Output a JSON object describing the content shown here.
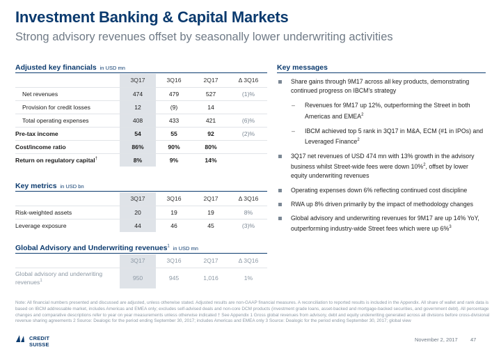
{
  "header": {
    "title": "Investment Banking & Capital Markets",
    "subtitle": "Strong advisory revenues offset by seasonally lower underwriting activities"
  },
  "financials": {
    "title": "Adjusted key financials",
    "unit": "in USD mn",
    "columns": [
      "3Q17",
      "3Q16",
      "2Q17",
      "Δ 3Q16"
    ],
    "rows": [
      {
        "label": "Net revenues",
        "values": [
          "474",
          "479",
          "527",
          "(1)%"
        ]
      },
      {
        "label": "Provision for credit losses",
        "values": [
          "12",
          "(9)",
          "14",
          ""
        ]
      },
      {
        "label": "Total operating expenses",
        "values": [
          "408",
          "433",
          "421",
          "(6)%"
        ]
      },
      {
        "label": "Pre-tax income",
        "values": [
          "54",
          "55",
          "92",
          "(2)%"
        ]
      },
      {
        "label": "Cost/income ratio",
        "values": [
          "86%",
          "90%",
          "80%",
          ""
        ]
      },
      {
        "label": "Return on regulatory capital",
        "footnote": "†",
        "values": [
          "8%",
          "9%",
          "14%",
          ""
        ]
      }
    ]
  },
  "metrics": {
    "title": "Key metrics",
    "unit": "in USD bn",
    "columns": [
      "3Q17",
      "3Q16",
      "2Q17",
      "Δ 3Q16"
    ],
    "rows": [
      {
        "label": "Risk-weighted assets",
        "values": [
          "20",
          "19",
          "19",
          "8%"
        ]
      },
      {
        "label": "Leverage exposure",
        "values": [
          "44",
          "46",
          "45",
          "(3)%"
        ]
      }
    ]
  },
  "advisory": {
    "title": "Global Advisory and Underwriting revenues",
    "footnote": "1",
    "unit": "in USD mn",
    "columns": [
      "3Q17",
      "3Q16",
      "2Q17",
      "Δ 3Q16"
    ],
    "row": {
      "label_line1": "Global advisory and underwriting",
      "label_line2": "revenues",
      "footnote": "1",
      "values": [
        "950",
        "945",
        "1,016",
        "1%"
      ]
    }
  },
  "key_messages": {
    "title": "Key messages",
    "items": [
      {
        "kind": "bullet",
        "text": "Share gains through 9M17 across all key products, demonstrating continued progress on IBCM's strategy"
      },
      {
        "kind": "sub",
        "text": "Revenues for 9M17 up 12%, outperforming the Street in both Americas and EMEA",
        "sup": "2"
      },
      {
        "kind": "sub",
        "text": "IBCM achieved top 5 rank in 3Q17 in M&A, ECM (#1 in IPOs) and Leveraged Finance",
        "sup": "2"
      },
      {
        "kind": "bullet",
        "text_a": "3Q17 net revenues of USD 474 mn with 13% growth in the advisory business whilst Street-wide fees were down 10%",
        "sup": "2",
        "text_b": ", offset by lower equity underwriting revenues"
      },
      {
        "kind": "bullet",
        "text": "Operating expenses down 6% reflecting continued cost discipline"
      },
      {
        "kind": "bullet",
        "text": "RWA up 8% driven primarily by the impact of methodology changes"
      },
      {
        "kind": "bullet",
        "text": "Global advisory and underwriting revenues for 9M17 are up 14% YoY, outperforming industry-wide Street fees which were up 6%",
        "sup": "3"
      }
    ]
  },
  "footnote": "Note: All financial numbers presented and discussed are adjusted, unless otherwise stated. Adjusted results are non-GAAP financial measures. A reconciliation to reported results is included in the Appendix. All share of wallet and rank data is based on IBCM addressable market, includes Americas and EMEA only; excludes self-advised deals and non-core DCM products (investment grade loans, asset-backed and mortgage-backed securities, and government debt). All percentage changes and comparative descriptions refer to year on year measurements unless otherwise indicated    † See Appendix    1 Gross global revenues from advisory, debt and equity underwriting generated across all divisions before cross-divisional revenue sharing agreements    2 Source: Dealogic for the period ending September 30, 2017; includes Americas and EMEA only    3 Source: Dealogic for the period ending September 30, 2017; global view",
  "footer": {
    "logo_text": "CREDIT SUISSE",
    "date": "November 2, 2017",
    "page": "47"
  },
  "colors": {
    "navy": "#0b3a6e",
    "shade": "#dfe3e8",
    "grey_text": "#8d99a5"
  }
}
